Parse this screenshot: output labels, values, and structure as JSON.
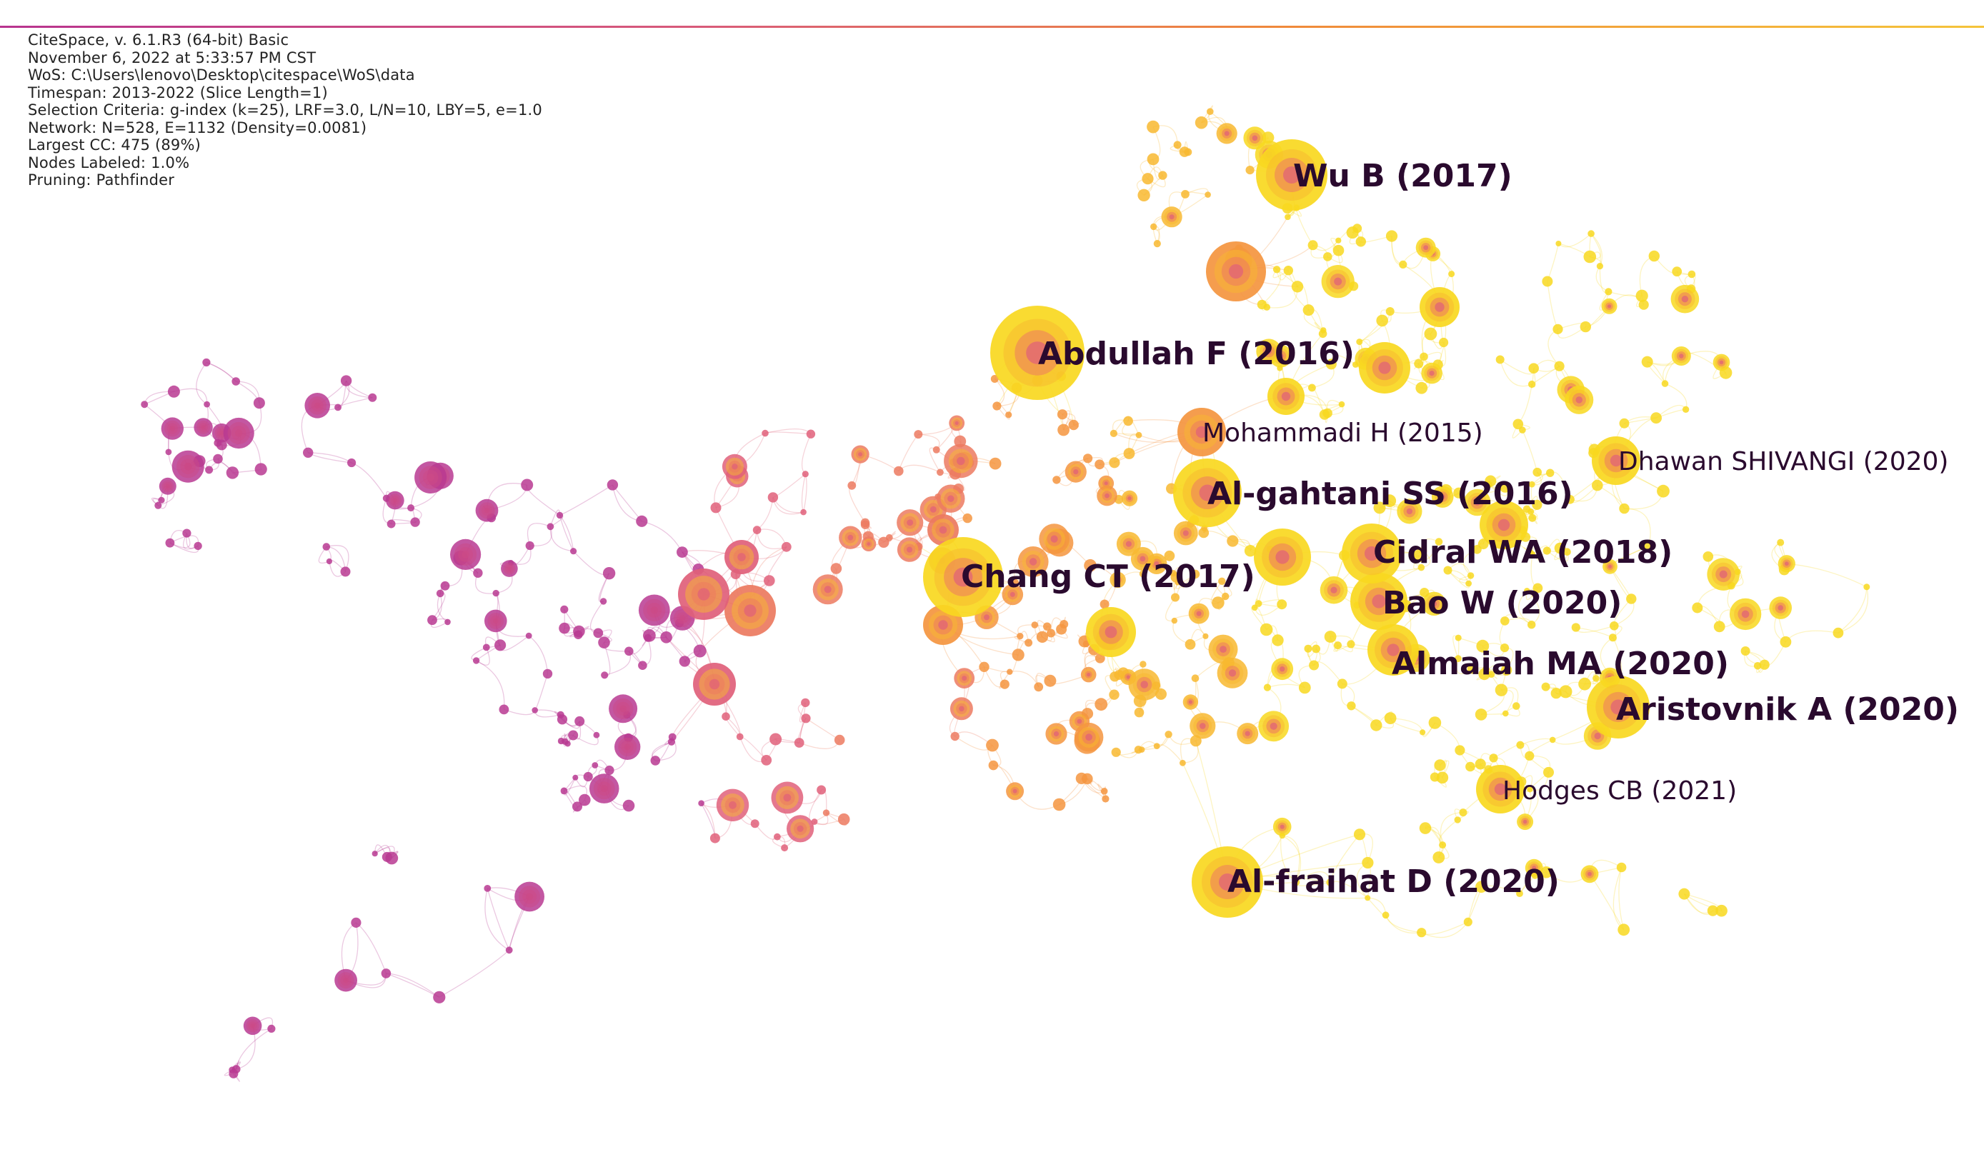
{
  "info": {
    "lines": [
      "CiteSpace, v. 6.1.R3 (64-bit) Basic",
      "November 6, 2022 at 5:33:57 PM CST",
      "WoS: C:\\Users\\lenovo\\Desktop\\citespace\\WoS\\data",
      "Timespan: 2013-2022 (Slice Length=1)",
      "Selection Criteria: g-index (k=25), LRF=3.0, L/N=10, LBY=5, e=1.0",
      "Network: N=528, E=1132 (Density=0.0081)",
      "Largest CC: 475 (89%)",
      "Nodes Labeled: 1.0%",
      "Pruning: Pathfinder"
    ]
  },
  "colors": {
    "purple": "#b83a92",
    "magenta": "#cc4a86",
    "pink": "#e0607a",
    "salmon": "#ec7a60",
    "orange": "#f4953f",
    "amber": "#f8b830",
    "yellow": "#f8d820",
    "label": "#2a0a2e"
  },
  "labels": [
    {
      "id": "wu-b",
      "text": "Wu B (2017)",
      "size": "big"
    },
    {
      "id": "abdullah-f",
      "text": "Abdullah F (2016)",
      "size": "big"
    },
    {
      "id": "mohammadi-h",
      "text": "Mohammadi H (2015)",
      "size": "mid"
    },
    {
      "id": "dhawan-shivangi",
      "text": "Dhawan SHIVANGI (2020)",
      "size": "mid"
    },
    {
      "id": "al-gahtani-ss",
      "text": "Al-gahtani SS (2016)",
      "size": "big"
    },
    {
      "id": "cidral-wa",
      "text": "Cidral WA (2018)",
      "size": "big"
    },
    {
      "id": "chang-ct",
      "text": "Chang CT (2017)",
      "size": "big"
    },
    {
      "id": "bao-w",
      "text": "Bao W (2020)",
      "size": "big"
    },
    {
      "id": "almaiah-ma",
      "text": "Almaiah MA (2020)",
      "size": "big"
    },
    {
      "id": "aristovnik-a",
      "text": "Aristovnik A (2020)",
      "size": "big"
    },
    {
      "id": "hodges-cb",
      "text": "Hodges CB (2021)",
      "size": "mid"
    },
    {
      "id": "al-fraihat-d",
      "text": "Al-fraihat D (2020)",
      "size": "big"
    }
  ]
}
